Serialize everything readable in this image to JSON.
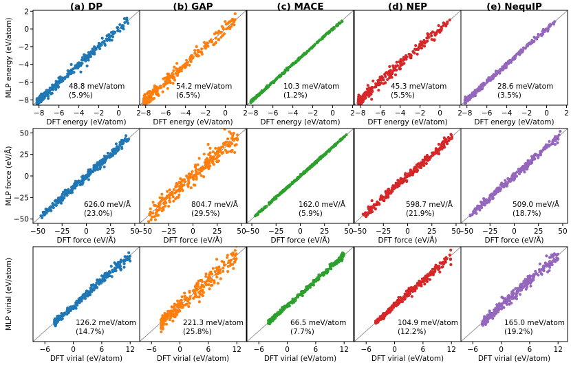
{
  "chart_data": {
    "type": "scatter",
    "layout": "grid",
    "models": [
      {
        "key": "dp",
        "title": "(a) DP",
        "color": "#1f77b4"
      },
      {
        "key": "gap",
        "title": "(b) GAP",
        "color": "#ff7f0e"
      },
      {
        "key": "mace",
        "title": "(c) MACE",
        "color": "#2ca02c"
      },
      {
        "key": "nep",
        "title": "(d) NEP",
        "color": "#d62728"
      },
      {
        "key": "nequip",
        "title": "(e) NequIP",
        "color": "#9467bd"
      }
    ],
    "rows": [
      {
        "key": "energy",
        "xlabel": "DFT energy (eV/atom)",
        "ylabel": "MLP energy (eV/atom)",
        "xlim": [
          -8.6,
          2.1
        ],
        "ylim": [
          -8.6,
          2.1
        ],
        "xticks": [
          -8,
          -6,
          -4,
          -2,
          0,
          2
        ],
        "xtick_labels": [
          "−8",
          "−6",
          "−4",
          "−2",
          "0",
          "2"
        ],
        "yticks": [
          -8,
          -6,
          -4,
          -2,
          0,
          2
        ],
        "ytick_labels": [
          "−8",
          "−6",
          "−4",
          "−2",
          "0",
          "2"
        ],
        "data_range": [
          -8.2,
          1.0
        ],
        "errors": [
          {
            "value": "48.8 meV/atom",
            "pct": "(5.9%)"
          },
          {
            "value": "54.2 meV/atom",
            "pct": "(6.5%)"
          },
          {
            "value": "10.3 meV/atom",
            "pct": "(1.2%)"
          },
          {
            "value": "45.3 meV/atom",
            "pct": "(5.5%)"
          },
          {
            "value": "28.6 meV/atom",
            "pct": "(3.5%)"
          }
        ],
        "scatter_spread": [
          0.25,
          0.35,
          0.06,
          0.28,
          0.14
        ]
      },
      {
        "key": "force",
        "xlabel": "DFT force (eV/Å)",
        "ylabel": "MLP force (eV/Å)",
        "xlim": [
          -55,
          55
        ],
        "ylim": [
          -55,
          55
        ],
        "xticks": [
          -50,
          -25,
          0,
          25,
          50
        ],
        "xtick_labels": [
          "−50",
          "−25",
          "0",
          "25",
          "50"
        ],
        "yticks": [
          -50,
          -25,
          0,
          25,
          50
        ],
        "ytick_labels": [
          "−50",
          "−25",
          "0",
          "25",
          "50"
        ],
        "data_range": [
          -48,
          48
        ],
        "errors": [
          {
            "value": "626.0 meV/Å",
            "pct": "(23.0%)"
          },
          {
            "value": "804.7 meV/Å",
            "pct": "(29.5%)"
          },
          {
            "value": "162.0 meV/Å",
            "pct": "(5.9%)"
          },
          {
            "value": "598.7 meV/Å",
            "pct": "(21.9%)"
          },
          {
            "value": "509.0 meV/Å",
            "pct": "(18.7%)"
          }
        ],
        "scatter_spread": [
          2.5,
          5.5,
          0.6,
          2.5,
          2.0
        ]
      },
      {
        "key": "virial",
        "xlabel": "DFT virial (eV/atom)",
        "ylabel": "MLP virial (eV/atom)",
        "xlim": [
          -8.5,
          14
        ],
        "ylim": [
          -8.5,
          14
        ],
        "xticks": [
          -6,
          0,
          6,
          12
        ],
        "xtick_labels": [
          "−6",
          "0",
          "6",
          "12"
        ],
        "yticks": [],
        "ytick_labels": [],
        "data_range": [
          -4,
          12
        ],
        "errors": [
          {
            "value": "126.2 meV/atom",
            "pct": "(14.7%)"
          },
          {
            "value": "221.3 meV/atom",
            "pct": "(25.8%)"
          },
          {
            "value": "66.5 meV/atom",
            "pct": "(7.7%)"
          },
          {
            "value": "104.9 meV/atom",
            "pct": "(12.2%)"
          },
          {
            "value": "165.0 meV/atom",
            "pct": "(19.2%)"
          }
        ],
        "scatter_spread": [
          0.7,
          1.3,
          0.45,
          0.55,
          0.85
        ]
      }
    ],
    "reference_line": "y = x",
    "grid": false
  }
}
